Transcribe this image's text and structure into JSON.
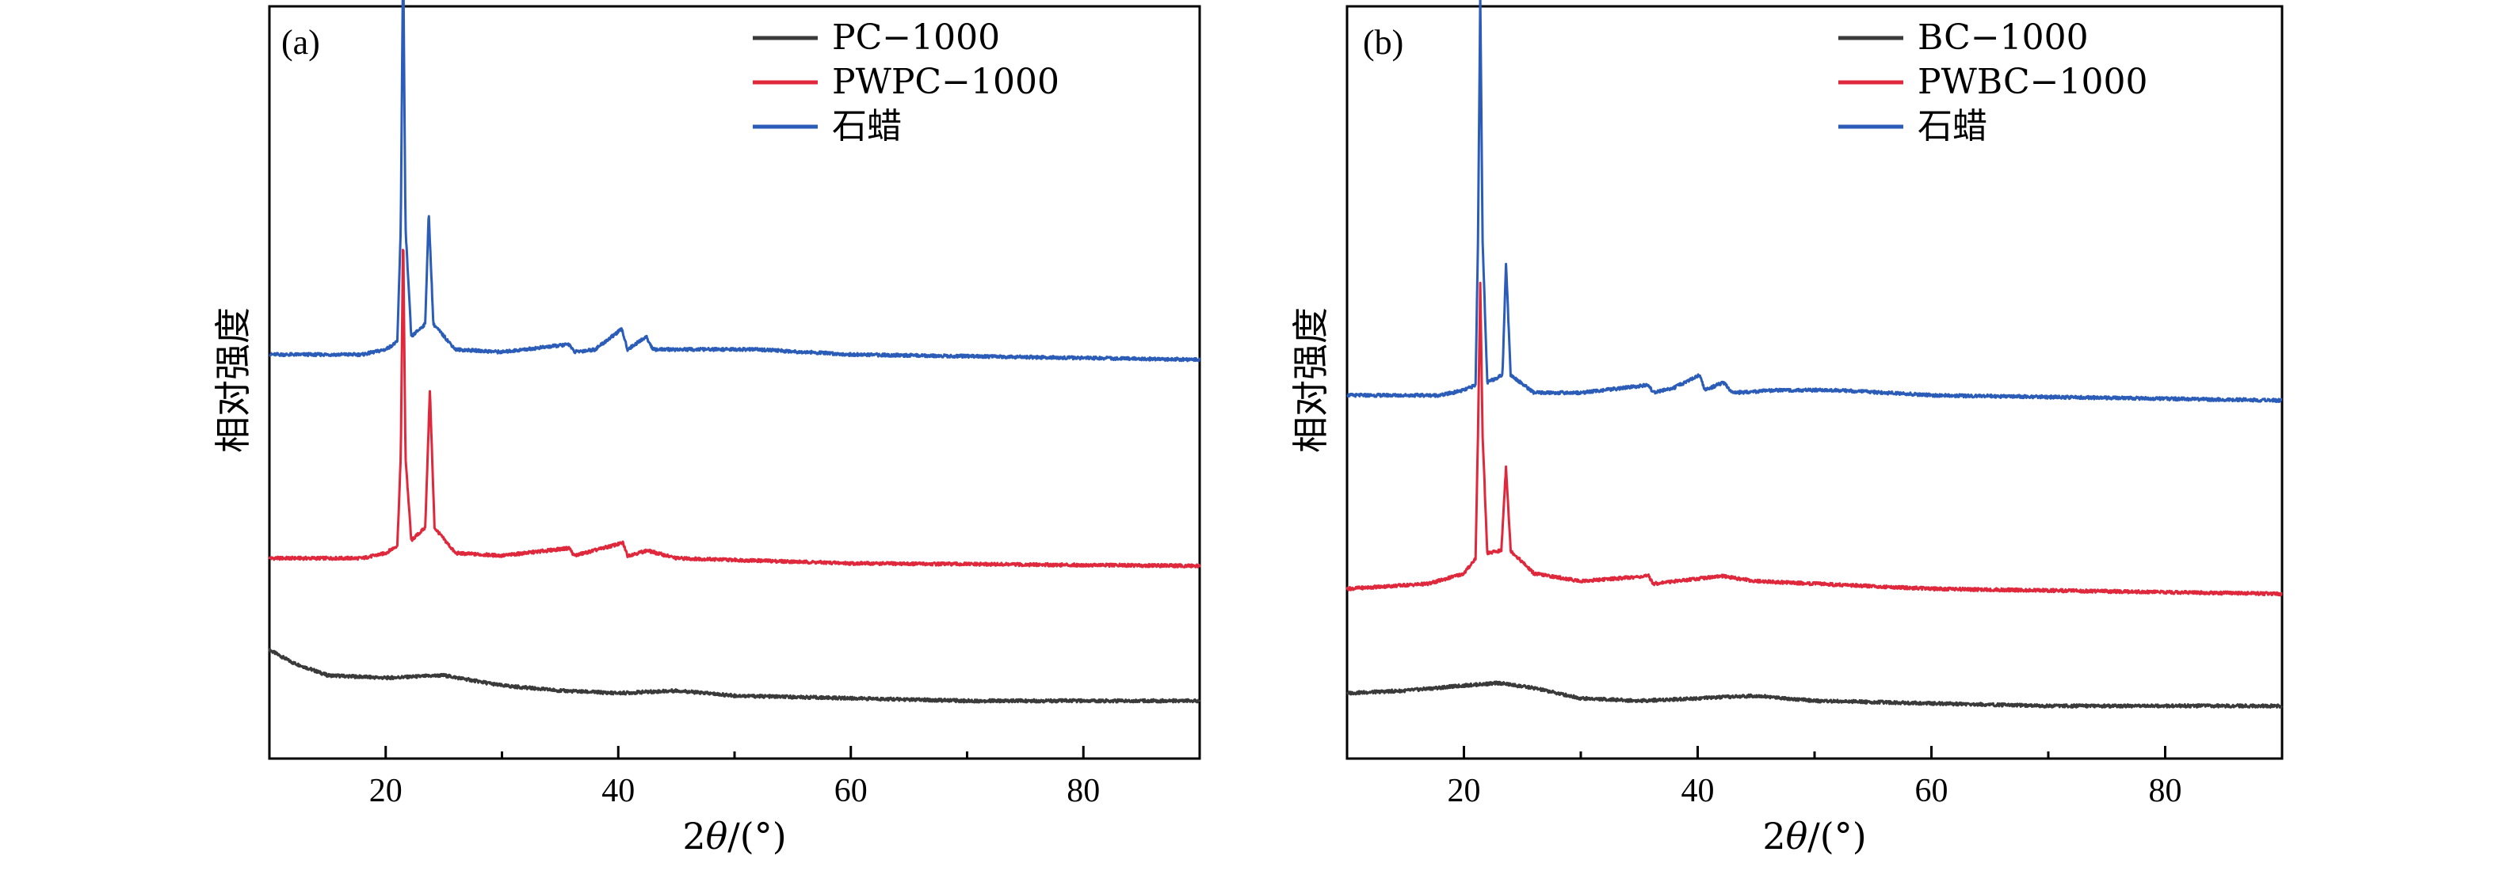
{
  "chart_data": [
    {
      "type": "line",
      "panel_label": "(a)",
      "xlabel_prefix": "2",
      "xlabel_theta": "θ",
      "xlabel_suffix": "/(°)",
      "ylabel": "相对强度",
      "xlim": [
        10,
        90
      ],
      "xticks": [
        20,
        40,
        60,
        80
      ],
      "y_ticks_shown": false,
      "grid": false,
      "legend_position": "top-right",
      "series": [
        {
          "name": "PC−1000",
          "color": "#3a3a3a",
          "offset": 0.0,
          "points": [
            [
              10,
              0.22
            ],
            [
              12,
              0.17
            ],
            [
              15,
              0.12
            ],
            [
              20,
              0.11
            ],
            [
              25,
              0.12
            ],
            [
              30,
              0.08
            ],
            [
              35,
              0.06
            ],
            [
              40,
              0.05
            ],
            [
              45,
              0.06
            ],
            [
              50,
              0.04
            ],
            [
              60,
              0.03
            ],
            [
              70,
              0.02
            ],
            [
              80,
              0.02
            ],
            [
              90,
              0.02
            ]
          ]
        },
        {
          "name": "PWPC−1000",
          "color": "#e0283c",
          "offset": 0.58,
          "points": [
            [
              10,
              0.0
            ],
            [
              18,
              0.0
            ],
            [
              20,
              0.02
            ],
            [
              21,
              0.05
            ],
            [
              21.3,
              0.4
            ],
            [
              21.5,
              1.3
            ],
            [
              21.7,
              0.4
            ],
            [
              22.2,
              0.07
            ],
            [
              23.4,
              0.12
            ],
            [
              23.8,
              0.66
            ],
            [
              24.2,
              0.12
            ],
            [
              26,
              0.02
            ],
            [
              30,
              0.01
            ],
            [
              35.8,
              0.04
            ],
            [
              36.2,
              0.01
            ],
            [
              40.4,
              0.06
            ],
            [
              40.8,
              0.01
            ],
            [
              42.5,
              0.03
            ],
            [
              45,
              0.0
            ],
            [
              60,
              -0.02
            ],
            [
              90,
              -0.03
            ]
          ]
        },
        {
          "name": "石蜡",
          "color": "#2b5cb8",
          "offset": 1.38,
          "points": [
            [
              10,
              0.0
            ],
            [
              18,
              0.0
            ],
            [
              20,
              0.02
            ],
            [
              21,
              0.05
            ],
            [
              21.3,
              0.5
            ],
            [
              21.5,
              1.62
            ],
            [
              21.7,
              0.5
            ],
            [
              22.2,
              0.07
            ],
            [
              23.4,
              0.12
            ],
            [
              23.7,
              0.56
            ],
            [
              24.1,
              0.12
            ],
            [
              26,
              0.02
            ],
            [
              30,
              0.01
            ],
            [
              35.8,
              0.04
            ],
            [
              36.2,
              0.01
            ],
            [
              38,
              0.02
            ],
            [
              40.3,
              0.1
            ],
            [
              40.8,
              0.02
            ],
            [
              42.4,
              0.07
            ],
            [
              43,
              0.02
            ],
            [
              47,
              0.02
            ],
            [
              52,
              0.02
            ],
            [
              60,
              0.0
            ],
            [
              90,
              -0.02
            ]
          ]
        }
      ]
    },
    {
      "type": "line",
      "panel_label": "(b)",
      "xlabel_prefix": "2",
      "xlabel_theta": "θ",
      "xlabel_suffix": "/(°)",
      "ylabel": "相对强度",
      "xlim": [
        10,
        90
      ],
      "xticks": [
        20,
        40,
        60,
        80
      ],
      "y_ticks_shown": false,
      "grid": false,
      "legend_position": "top-right",
      "series": [
        {
          "name": "BC−1000",
          "color": "#3a3a3a",
          "offset": 0.0,
          "points": [
            [
              10,
              0.05
            ],
            [
              15,
              0.06
            ],
            [
              20,
              0.08
            ],
            [
              23,
              0.09
            ],
            [
              26,
              0.07
            ],
            [
              30,
              0.03
            ],
            [
              35,
              0.02
            ],
            [
              40,
              0.03
            ],
            [
              45,
              0.04
            ],
            [
              50,
              0.02
            ],
            [
              60,
              0.01
            ],
            [
              70,
              0.0
            ],
            [
              90,
              0.0
            ]
          ]
        },
        {
          "name": "PWBC−1000",
          "color": "#e0283c",
          "offset": 0.46,
          "points": [
            [
              10,
              0.0
            ],
            [
              17,
              0.02
            ],
            [
              20,
              0.06
            ],
            [
              21,
              0.12
            ],
            [
              21.2,
              0.6
            ],
            [
              21.4,
              1.2
            ],
            [
              21.6,
              0.6
            ],
            [
              22,
              0.14
            ],
            [
              23.2,
              0.15
            ],
            [
              23.6,
              0.48
            ],
            [
              24,
              0.15
            ],
            [
              26,
              0.06
            ],
            [
              30,
              0.03
            ],
            [
              35.8,
              0.05
            ],
            [
              36.2,
              0.02
            ],
            [
              40,
              0.04
            ],
            [
              42,
              0.05
            ],
            [
              45,
              0.03
            ],
            [
              60,
              0.0
            ],
            [
              90,
              -0.02
            ]
          ]
        },
        {
          "name": "石蜡",
          "color": "#2b5cb8",
          "offset": 1.22,
          "points": [
            [
              10,
              0.0
            ],
            [
              18,
              0.0
            ],
            [
              20,
              0.02
            ],
            [
              21,
              0.04
            ],
            [
              21.2,
              0.6
            ],
            [
              21.4,
              1.58
            ],
            [
              21.6,
              0.6
            ],
            [
              22,
              0.05
            ],
            [
              23.3,
              0.08
            ],
            [
              23.6,
              0.52
            ],
            [
              24,
              0.08
            ],
            [
              26,
              0.01
            ],
            [
              30,
              0.01
            ],
            [
              35.8,
              0.04
            ],
            [
              36.2,
              0.01
            ],
            [
              38,
              0.03
            ],
            [
              40.2,
              0.08
            ],
            [
              40.6,
              0.02
            ],
            [
              42.2,
              0.05
            ],
            [
              43,
              0.01
            ],
            [
              47,
              0.02
            ],
            [
              52,
              0.02
            ],
            [
              60,
              0.0
            ],
            [
              90,
              -0.02
            ]
          ]
        }
      ]
    }
  ]
}
